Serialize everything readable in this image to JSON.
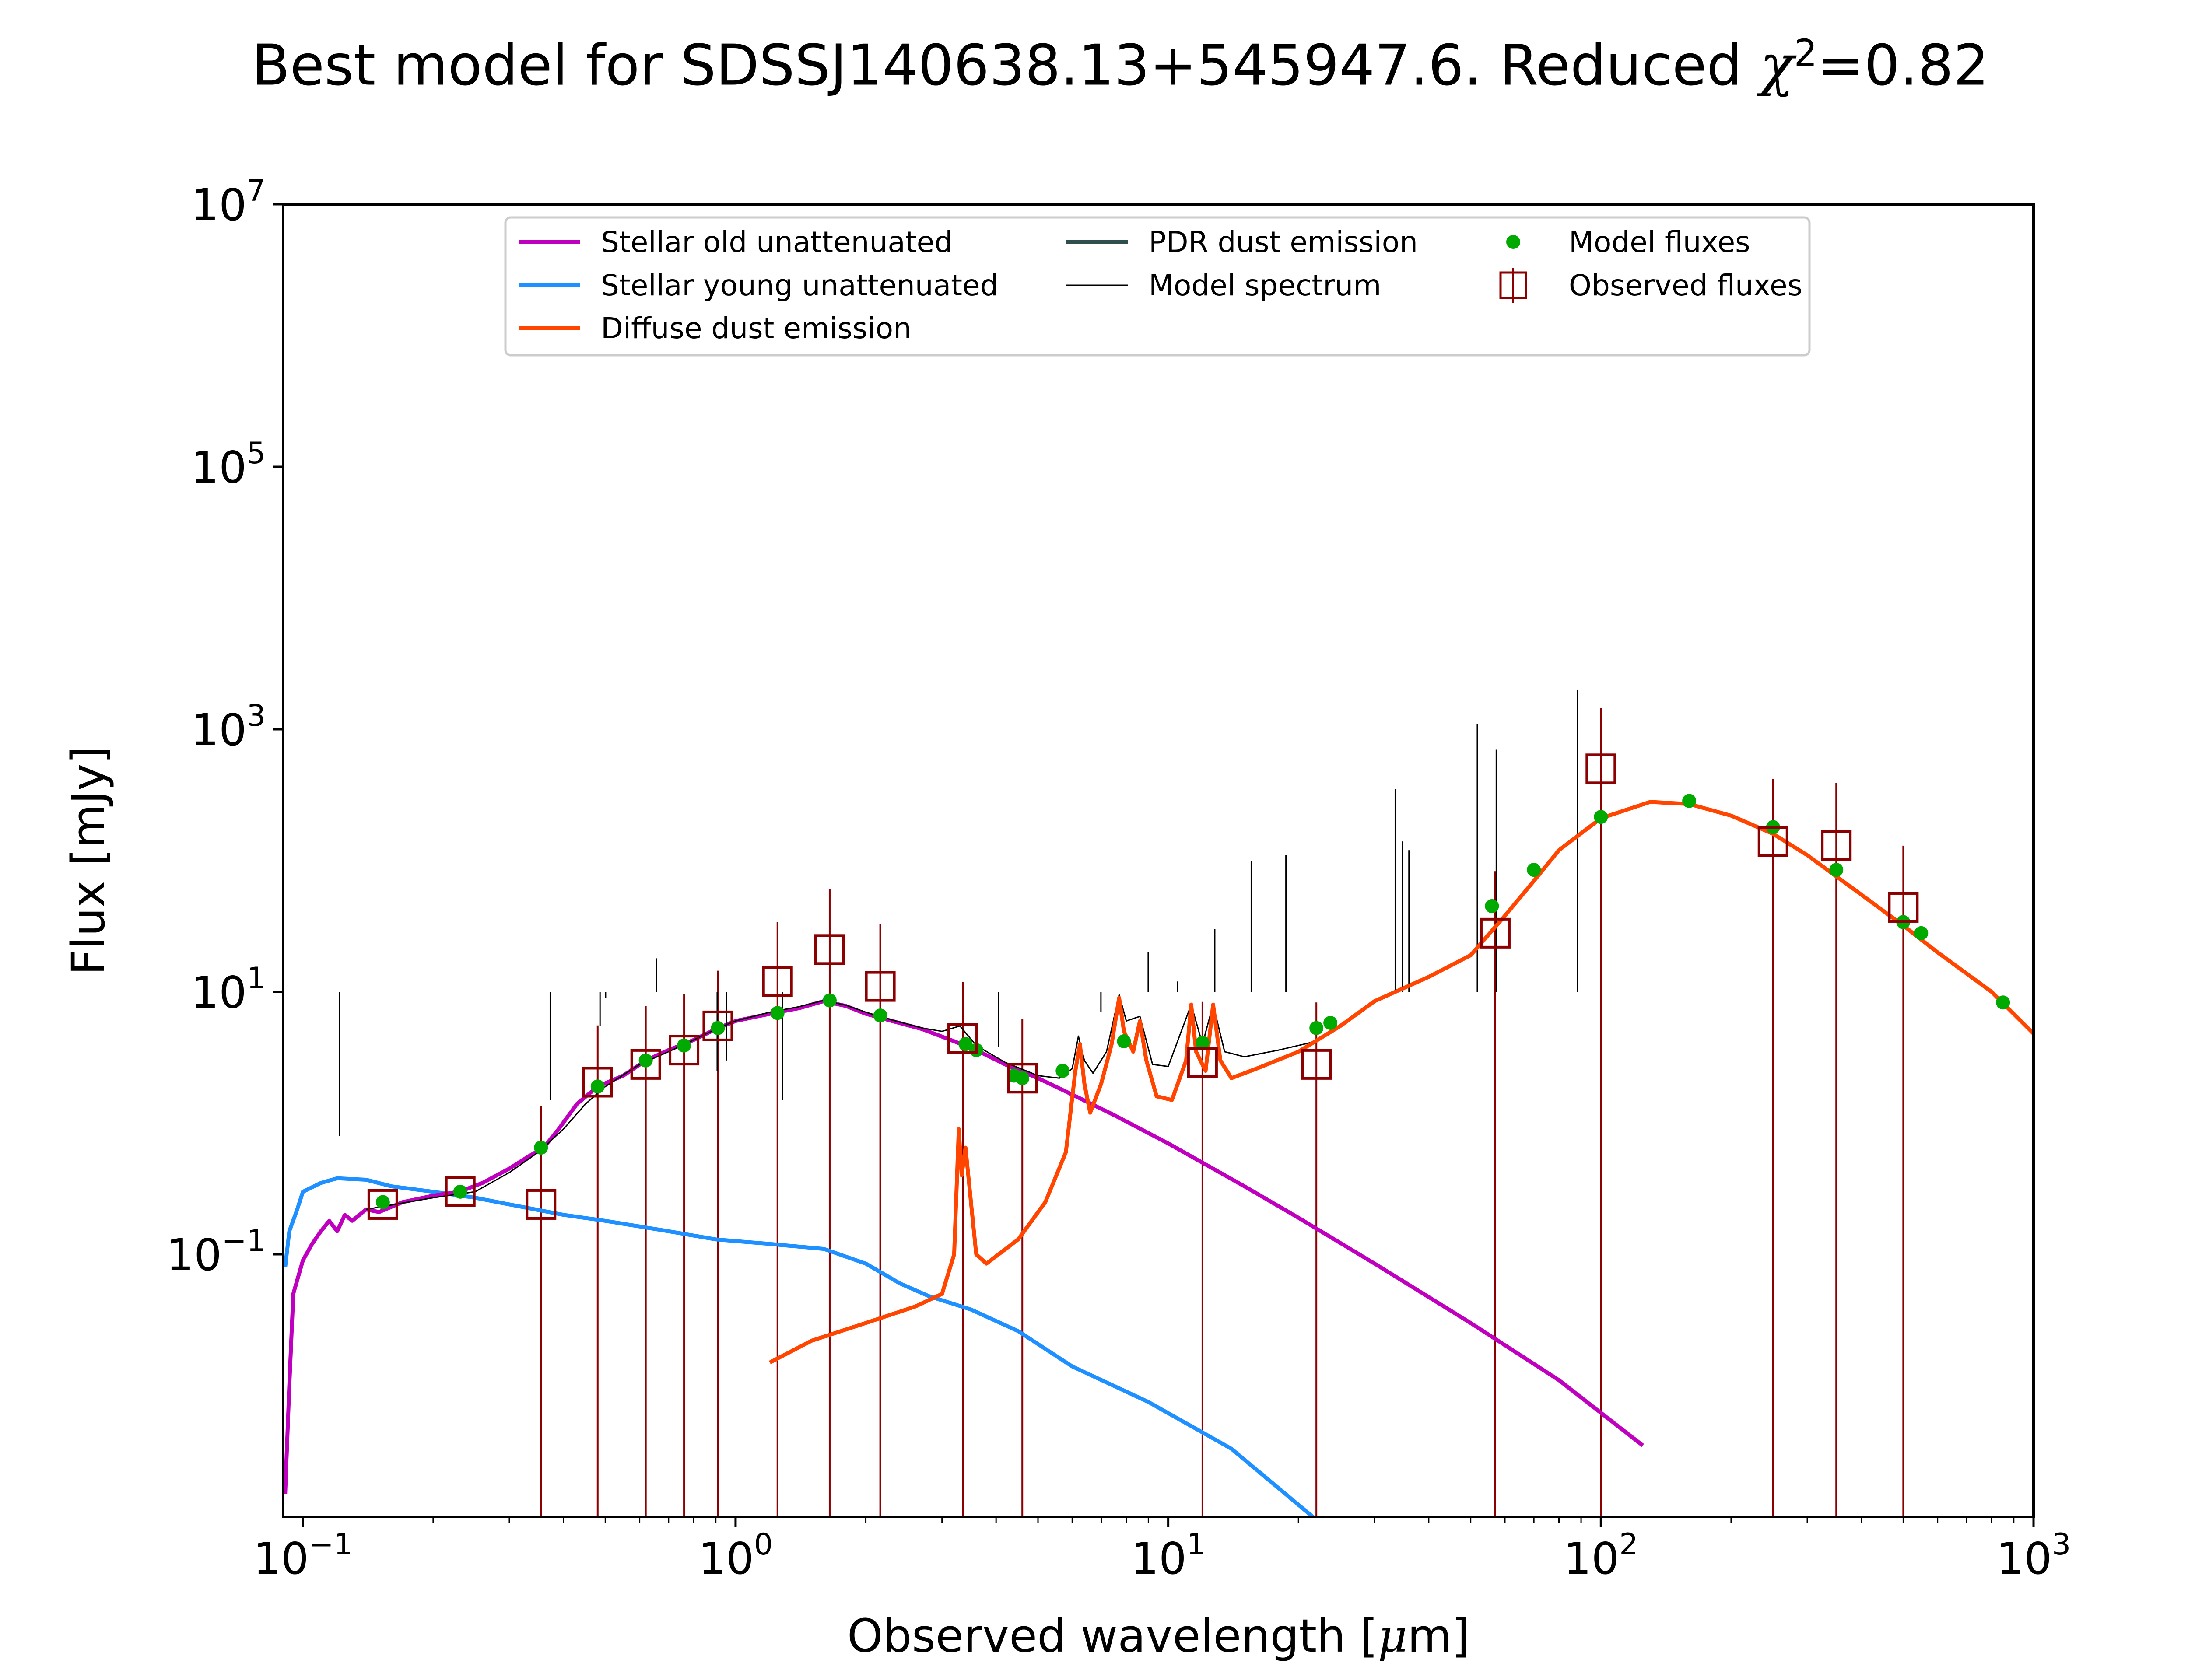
{
  "page": {
    "title_pre": "Best model for SDSSJ140638.13+545947.6. Reduced ",
    "title_chi": "χ",
    "title_sup": "2",
    "title_post": "=0.82"
  },
  "chart_data": {
    "type": "line",
    "title": "Best model for SDSSJ140638.13+545947.6. Reduced χ²=0.82",
    "xlabel": "Observed wavelength [μm]",
    "ylabel": "Flux [mJy]",
    "xscale": "log",
    "yscale": "log",
    "xlim": [
      0.09,
      1000
    ],
    "ylim": [
      0.001,
      10000000
    ],
    "grid": false,
    "legend_position": "top-center",
    "x_ticks": [
      {
        "value": 0.1,
        "base": "10",
        "exp": "−1"
      },
      {
        "value": 1,
        "base": "10",
        "exp": "0"
      },
      {
        "value": 10,
        "base": "10",
        "exp": "1"
      },
      {
        "value": 100,
        "base": "10",
        "exp": "2"
      },
      {
        "value": 1000,
        "base": "10",
        "exp": "3"
      }
    ],
    "y_ticks": [
      {
        "value": 0.1,
        "base": "10",
        "exp": "−1"
      },
      {
        "value": 10,
        "base": "10",
        "exp": "1"
      },
      {
        "value": 1000,
        "base": "10",
        "exp": "3"
      },
      {
        "value": 100000,
        "base": "10",
        "exp": "5"
      },
      {
        "value": 10000000,
        "base": "10",
        "exp": "7"
      }
    ],
    "series": [
      {
        "name": "Stellar old unattenuated",
        "kind": "line",
        "color": "#bf00bf",
        "points": [
          [
            0.091,
            0.0015
          ],
          [
            0.093,
            0.01
          ],
          [
            0.095,
            0.05
          ],
          [
            0.1,
            0.09
          ],
          [
            0.105,
            0.12
          ],
          [
            0.11,
            0.15
          ],
          [
            0.115,
            0.18
          ],
          [
            0.12,
            0.15
          ],
          [
            0.125,
            0.2
          ],
          [
            0.13,
            0.18
          ],
          [
            0.14,
            0.22
          ],
          [
            0.15,
            0.21
          ],
          [
            0.17,
            0.25
          ],
          [
            0.2,
            0.28
          ],
          [
            0.23,
            0.3
          ],
          [
            0.26,
            0.35
          ],
          [
            0.3,
            0.45
          ],
          [
            0.33,
            0.55
          ],
          [
            0.36,
            0.65
          ],
          [
            0.39,
            0.9
          ],
          [
            0.43,
            1.4
          ],
          [
            0.48,
            1.9
          ],
          [
            0.55,
            2.3
          ],
          [
            0.62,
            3.0
          ],
          [
            0.7,
            3.6
          ],
          [
            0.8,
            4.3
          ],
          [
            0.9,
            5.2
          ],
          [
            1.0,
            6.0
          ],
          [
            1.2,
            6.8
          ],
          [
            1.4,
            7.5
          ],
          [
            1.6,
            8.5
          ],
          [
            1.8,
            7.8
          ],
          [
            2.0,
            6.8
          ],
          [
            2.3,
            6.0
          ],
          [
            2.7,
            5.2
          ],
          [
            3.2,
            4.2
          ],
          [
            3.6,
            3.6
          ],
          [
            4.2,
            2.8
          ],
          [
            5.0,
            2.2
          ],
          [
            6.0,
            1.65
          ],
          [
            7.5,
            1.15
          ],
          [
            10,
            0.7
          ],
          [
            15,
            0.33
          ],
          [
            20,
            0.19
          ],
          [
            30,
            0.085
          ],
          [
            50,
            0.03
          ],
          [
            80,
            0.011
          ],
          [
            125,
            0.0035
          ]
        ]
      },
      {
        "name": "Stellar young unattenuated",
        "kind": "line",
        "color": "#1e90ff",
        "points": [
          [
            0.091,
            0.08
          ],
          [
            0.093,
            0.15
          ],
          [
            0.097,
            0.22
          ],
          [
            0.1,
            0.3
          ],
          [
            0.11,
            0.35
          ],
          [
            0.12,
            0.38
          ],
          [
            0.14,
            0.37
          ],
          [
            0.16,
            0.33
          ],
          [
            0.2,
            0.3
          ],
          [
            0.25,
            0.27
          ],
          [
            0.3,
            0.24
          ],
          [
            0.4,
            0.2
          ],
          [
            0.5,
            0.18
          ],
          [
            0.7,
            0.15
          ],
          [
            0.9,
            0.13
          ],
          [
            1.2,
            0.12
          ],
          [
            1.6,
            0.11
          ],
          [
            2.0,
            0.085
          ],
          [
            2.4,
            0.06
          ],
          [
            2.8,
            0.048
          ],
          [
            3.5,
            0.038
          ],
          [
            4.5,
            0.026
          ],
          [
            6.0,
            0.014
          ],
          [
            9.0,
            0.0075
          ],
          [
            14,
            0.0033
          ],
          [
            22,
            0.00095
          ]
        ]
      },
      {
        "name": "Diffuse dust emission",
        "kind": "line",
        "color": "#ff4500",
        "points": [
          [
            1.2,
            0.015
          ],
          [
            1.5,
            0.022
          ],
          [
            2.0,
            0.03
          ],
          [
            2.6,
            0.04
          ],
          [
            3.0,
            0.05
          ],
          [
            3.2,
            0.1
          ],
          [
            3.28,
            0.9
          ],
          [
            3.33,
            0.4
          ],
          [
            3.4,
            0.65
          ],
          [
            3.5,
            0.25
          ],
          [
            3.6,
            0.1
          ],
          [
            3.8,
            0.085
          ],
          [
            4.5,
            0.13
          ],
          [
            5.2,
            0.25
          ],
          [
            5.8,
            0.6
          ],
          [
            6.1,
            2.5
          ],
          [
            6.25,
            4.0
          ],
          [
            6.4,
            2.0
          ],
          [
            6.6,
            1.2
          ],
          [
            7.0,
            2.0
          ],
          [
            7.4,
            4.0
          ],
          [
            7.7,
            9.0
          ],
          [
            7.9,
            5.0
          ],
          [
            8.3,
            3.5
          ],
          [
            8.6,
            6.0
          ],
          [
            8.9,
            3.0
          ],
          [
            9.4,
            1.6
          ],
          [
            10.2,
            1.5
          ],
          [
            11.0,
            3.0
          ],
          [
            11.3,
            8.0
          ],
          [
            11.6,
            3.5
          ],
          [
            12.2,
            2.5
          ],
          [
            12.7,
            8.0
          ],
          [
            13.2,
            3.0
          ],
          [
            14.0,
            2.2
          ],
          [
            16,
            2.6
          ],
          [
            20,
            3.5
          ],
          [
            25,
            5.5
          ],
          [
            30,
            8.5
          ],
          [
            40,
            13
          ],
          [
            50,
            19
          ],
          [
            60,
            38
          ],
          [
            70,
            70
          ],
          [
            80,
            120
          ],
          [
            100,
            210
          ],
          [
            130,
            280
          ],
          [
            160,
            270
          ],
          [
            200,
            220
          ],
          [
            250,
            160
          ],
          [
            300,
            110
          ],
          [
            400,
            55
          ],
          [
            500,
            32
          ],
          [
            600,
            20
          ],
          [
            800,
            10
          ],
          [
            1000,
            4.8
          ]
        ]
      },
      {
        "name": "PDR dust emission",
        "kind": "line",
        "color": "#2f4f4f",
        "points": []
      },
      {
        "name": "Model spectrum",
        "kind": "line",
        "color": "#000000",
        "points": [
          [
            0.14,
            0.22
          ],
          [
            0.2,
            0.27
          ],
          [
            0.25,
            0.3
          ],
          [
            0.3,
            0.42
          ],
          [
            0.35,
            0.6
          ],
          [
            0.4,
            0.9
          ],
          [
            0.45,
            1.4
          ],
          [
            0.5,
            1.9
          ],
          [
            0.6,
            2.8
          ],
          [
            0.7,
            3.5
          ],
          [
            0.8,
            4.3
          ],
          [
            0.9,
            5.2
          ],
          [
            1.0,
            6.0
          ],
          [
            1.2,
            7.0
          ],
          [
            1.4,
            7.7
          ],
          [
            1.6,
            8.6
          ],
          [
            1.8,
            7.9
          ],
          [
            2.0,
            7.0
          ],
          [
            2.3,
            6.1
          ],
          [
            2.7,
            5.3
          ],
          [
            3.0,
            5.0
          ],
          [
            3.3,
            5.5
          ],
          [
            3.6,
            3.9
          ],
          [
            4.2,
            2.9
          ],
          [
            5.0,
            2.3
          ],
          [
            5.6,
            2.2
          ],
          [
            6.0,
            2.6
          ],
          [
            6.2,
            4.6
          ],
          [
            6.4,
            3.0
          ],
          [
            6.7,
            2.4
          ],
          [
            7.2,
            3.5
          ],
          [
            7.7,
            9.5
          ],
          [
            8.0,
            6.0
          ],
          [
            8.6,
            6.5
          ],
          [
            9.2,
            2.8
          ],
          [
            10,
            2.7
          ],
          [
            11.3,
            8.0
          ],
          [
            12,
            4.0
          ],
          [
            12.7,
            8.0
          ],
          [
            13.5,
            3.5
          ],
          [
            15,
            3.2
          ],
          [
            18,
            3.6
          ],
          [
            22,
            4.2
          ],
          [
            25,
            5.6
          ],
          [
            30,
            8.6
          ],
          [
            40,
            13
          ],
          [
            50,
            19
          ],
          [
            60,
            38
          ],
          [
            70,
            70
          ],
          [
            80,
            120
          ],
          [
            100,
            210
          ],
          [
            130,
            280
          ],
          [
            160,
            270
          ],
          [
            200,
            220
          ],
          [
            250,
            160
          ],
          [
            300,
            110
          ],
          [
            400,
            55
          ],
          [
            500,
            32
          ],
          [
            600,
            20
          ],
          [
            800,
            10
          ],
          [
            1000,
            4.8
          ]
        ],
        "emission_lines": [
          [
            0.1216,
            0.8
          ],
          [
            0.373,
            1.5
          ],
          [
            0.4861,
            5.5
          ],
          [
            0.5007,
            9.0
          ],
          [
            0.6563,
            18
          ],
          [
            0.9069,
            2.5
          ],
          [
            0.9532,
            3.0
          ],
          [
            1.282,
            1.5
          ],
          [
            4.05,
            3.8
          ],
          [
            6.99,
            7.0
          ],
          [
            8.99,
            20
          ],
          [
            10.51,
            12
          ],
          [
            12.81,
            30
          ],
          [
            15.56,
            100
          ],
          [
            18.71,
            110
          ],
          [
            33.48,
            350
          ],
          [
            34.82,
            140
          ],
          [
            36.01,
            120
          ],
          [
            51.81,
            1100
          ],
          [
            57.32,
            700
          ],
          [
            88.36,
            2000
          ]
        ]
      },
      {
        "name": "Model fluxes",
        "kind": "scatter",
        "color": "#00aa00",
        "points": [
          [
            0.153,
            0.25
          ],
          [
            0.231,
            0.3
          ],
          [
            0.355,
            0.65
          ],
          [
            0.48,
            1.9
          ],
          [
            0.62,
            3.0
          ],
          [
            0.76,
            3.9
          ],
          [
            0.91,
            5.3
          ],
          [
            1.25,
            6.9
          ],
          [
            1.65,
            8.6
          ],
          [
            2.16,
            6.6
          ],
          [
            3.4,
            4.0
          ],
          [
            3.6,
            3.6
          ],
          [
            4.4,
            2.3
          ],
          [
            4.6,
            2.2
          ],
          [
            5.7,
            2.5
          ],
          [
            7.9,
            4.2
          ],
          [
            12,
            4.1
          ],
          [
            22,
            5.3
          ],
          [
            23.7,
            5.8
          ],
          [
            56,
            45
          ],
          [
            70,
            85
          ],
          [
            100,
            215
          ],
          [
            160,
            285
          ],
          [
            250,
            180
          ],
          [
            350,
            85
          ],
          [
            500,
            34
          ],
          [
            550,
            28
          ],
          [
            850,
            8.3
          ]
        ]
      },
      {
        "name": "Observed fluxes",
        "kind": "errorbar",
        "color": "#8b0000",
        "points": [
          [
            0.153,
            0.24,
            0.0
          ],
          [
            0.231,
            0.3,
            0.0
          ],
          [
            0.355,
            0.24,
            1.1
          ],
          [
            0.48,
            2.05,
            3.5
          ],
          [
            0.62,
            2.8,
            5.0
          ],
          [
            0.76,
            3.6,
            6.0
          ],
          [
            0.91,
            5.5,
            9.0
          ],
          [
            1.25,
            12,
            22
          ],
          [
            1.65,
            21,
            40
          ],
          [
            2.16,
            11,
            22
          ],
          [
            3.35,
            4.4,
            7.5
          ],
          [
            4.6,
            2.2,
            4.0
          ],
          [
            12,
            2.9,
            5.5
          ],
          [
            22,
            2.8,
            5.5
          ],
          [
            57,
            28,
            55
          ],
          [
            100,
            500,
            950
          ],
          [
            250,
            140,
            280
          ],
          [
            350,
            130,
            260
          ],
          [
            500,
            44,
            86
          ]
        ]
      }
    ]
  }
}
